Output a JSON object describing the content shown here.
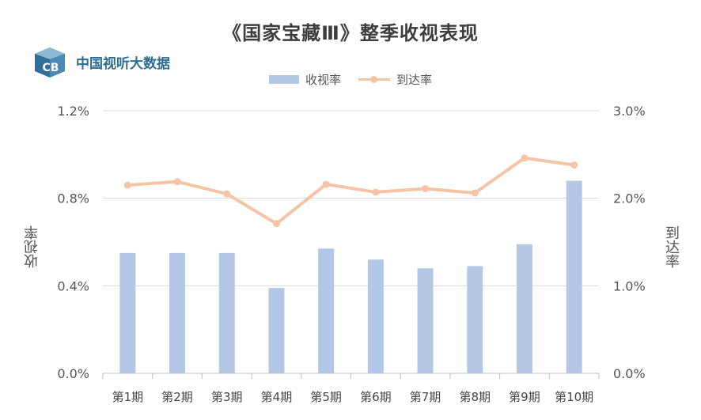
{
  "header": {
    "title": "《国家宝藏Ⅲ》整季收视表现",
    "brand": "中国视听大数据",
    "logo_letters": "CB"
  },
  "colors": {
    "bar": "#b4c7e7",
    "line": "#f4c4a4",
    "grid": "#d9d9d9",
    "title": "#3d3d3d",
    "brand": "#2d6c8f"
  },
  "chart_data": {
    "type": "bar",
    "categories": [
      "第1期",
      "第2期",
      "第3期",
      "第4期",
      "第5期",
      "第6期",
      "第7期",
      "第8期",
      "第9期",
      "第10期"
    ],
    "series": [
      {
        "name": "收视率",
        "type": "bar",
        "axis": "left",
        "values": [
          0.55,
          0.55,
          0.55,
          0.39,
          0.57,
          0.52,
          0.48,
          0.49,
          0.59,
          0.88
        ]
      },
      {
        "name": "到达率",
        "type": "line",
        "axis": "right",
        "values": [
          2.15,
          2.19,
          2.05,
          1.71,
          2.16,
          2.07,
          2.11,
          2.06,
          2.46,
          2.38
        ]
      }
    ],
    "ylabel": "收视率",
    "y2label": "到达率",
    "ylim": [
      0,
      1.2
    ],
    "y2lim": [
      0,
      3.0
    ],
    "yticks": [
      "0.0%",
      "0.4%",
      "0.8%",
      "1.2%"
    ],
    "y2ticks": [
      "0.0%",
      "1.0%",
      "2.0%",
      "3.0%"
    ],
    "grid": true,
    "legend_position": "top"
  }
}
